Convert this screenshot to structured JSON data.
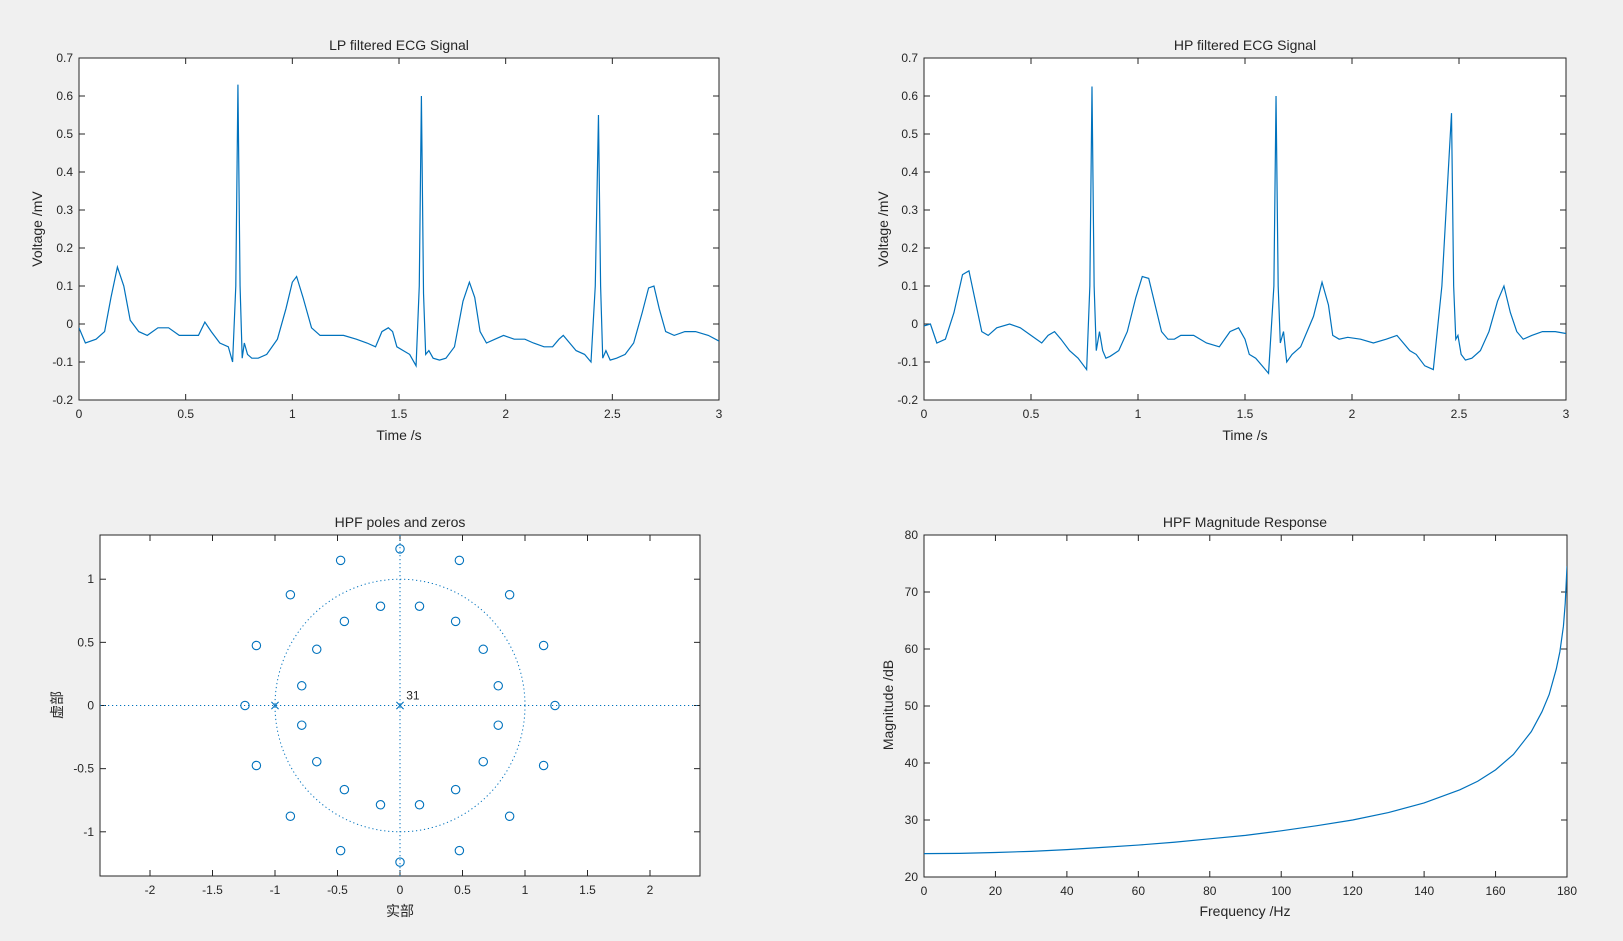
{
  "colors": {
    "series": "#0072bd",
    "axes": "#262626",
    "figure_bg": "#f0f0f0",
    "axes_bg": "#ffffff"
  },
  "chart_data": [
    {
      "id": "lp",
      "type": "line",
      "title": "LP filtered ECG Signal",
      "xlabel": "Time /s",
      "ylabel": "Voltage /mV",
      "xlim": [
        0,
        3
      ],
      "ylim": [
        -0.2,
        0.7
      ],
      "xticks": [
        0,
        0.5,
        1,
        1.5,
        2,
        2.5,
        3
      ],
      "xtick_labels": [
        "0",
        "0.5",
        "1",
        "1.5",
        "2",
        "2.5",
        "3"
      ],
      "yticks": [
        -0.2,
        -0.1,
        0,
        0.1,
        0.2,
        0.3,
        0.4,
        0.5,
        0.6,
        0.7
      ],
      "ytick_labels": [
        "-0.2",
        "-0.1",
        "0",
        "0.1",
        "0.2",
        "0.3",
        "0.4",
        "0.5",
        "0.6",
        "0.7"
      ],
      "grid": false,
      "series": [
        {
          "x": [
            0,
            0.03,
            0.08,
            0.12,
            0.15,
            0.18,
            0.21,
            0.24,
            0.28,
            0.32,
            0.37,
            0.42,
            0.47,
            0.5,
            0.53,
            0.56,
            0.59,
            0.62,
            0.66,
            0.7,
            0.72,
            0.735,
            0.745,
            0.755,
            0.765,
            0.775,
            0.79,
            0.81,
            0.84,
            0.88,
            0.93,
            0.97,
            1.0,
            1.02,
            1.05,
            1.09,
            1.13,
            1.18,
            1.24,
            1.3,
            1.35,
            1.39,
            1.42,
            1.45,
            1.47,
            1.49,
            1.52,
            1.55,
            1.58,
            1.595,
            1.605,
            1.615,
            1.625,
            1.64,
            1.66,
            1.69,
            1.72,
            1.76,
            1.8,
            1.83,
            1.855,
            1.88,
            1.91,
            1.95,
            1.99,
            2.04,
            2.09,
            2.13,
            2.18,
            2.22,
            2.25,
            2.27,
            2.3,
            2.33,
            2.37,
            2.4,
            2.42,
            2.435,
            2.445,
            2.455,
            2.47,
            2.49,
            2.52,
            2.56,
            2.6,
            2.64,
            2.67,
            2.695,
            2.72,
            2.75,
            2.79,
            2.84,
            2.89,
            2.95,
            3.0
          ],
          "y": [
            -0.01,
            -0.05,
            -0.04,
            -0.02,
            0.07,
            0.15,
            0.1,
            0.01,
            -0.02,
            -0.03,
            -0.01,
            -0.01,
            -0.03,
            -0.03,
            -0.03,
            -0.03,
            0.005,
            -0.02,
            -0.05,
            -0.06,
            -0.1,
            0.1,
            0.63,
            0.1,
            -0.09,
            -0.05,
            -0.08,
            -0.09,
            -0.09,
            -0.08,
            -0.04,
            0.04,
            0.11,
            0.125,
            0.07,
            -0.01,
            -0.03,
            -0.03,
            -0.03,
            -0.04,
            -0.05,
            -0.06,
            -0.02,
            -0.01,
            -0.02,
            -0.06,
            -0.07,
            -0.08,
            -0.11,
            0.1,
            0.6,
            0.08,
            -0.08,
            -0.07,
            -0.09,
            -0.095,
            -0.09,
            -0.06,
            0.06,
            0.11,
            0.07,
            -0.02,
            -0.05,
            -0.04,
            -0.03,
            -0.04,
            -0.04,
            -0.05,
            -0.06,
            -0.06,
            -0.04,
            -0.03,
            -0.05,
            -0.07,
            -0.08,
            -0.1,
            0.1,
            0.55,
            0.1,
            -0.09,
            -0.07,
            -0.095,
            -0.09,
            -0.08,
            -0.05,
            0.03,
            0.095,
            0.1,
            0.04,
            -0.02,
            -0.03,
            -0.02,
            -0.02,
            -0.03,
            -0.045
          ]
        }
      ]
    },
    {
      "id": "hp",
      "type": "line",
      "title": "HP filtered ECG Signal",
      "xlabel": "Time /s",
      "ylabel": "Voltage /mV",
      "xlim": [
        0,
        3
      ],
      "ylim": [
        -0.2,
        0.7
      ],
      "xticks": [
        0,
        0.5,
        1,
        1.5,
        2,
        2.5,
        3
      ],
      "xtick_labels": [
        "0",
        "0.5",
        "1",
        "1.5",
        "2",
        "2.5",
        "3"
      ],
      "yticks": [
        -0.2,
        -0.1,
        0,
        0.1,
        0.2,
        0.3,
        0.4,
        0.5,
        0.6,
        0.7
      ],
      "ytick_labels": [
        "-0.2",
        "-0.1",
        "0",
        "0.1",
        "0.2",
        "0.3",
        "0.4",
        "0.5",
        "0.6",
        "0.7"
      ],
      "grid": false,
      "series": [
        {
          "x": [
            0,
            0.03,
            0.06,
            0.1,
            0.14,
            0.18,
            0.21,
            0.24,
            0.27,
            0.3,
            0.34,
            0.4,
            0.45,
            0.5,
            0.55,
            0.58,
            0.61,
            0.64,
            0.68,
            0.72,
            0.76,
            0.775,
            0.785,
            0.795,
            0.805,
            0.82,
            0.835,
            0.85,
            0.87,
            0.91,
            0.95,
            0.99,
            1.02,
            1.05,
            1.08,
            1.11,
            1.14,
            1.17,
            1.2,
            1.26,
            1.32,
            1.38,
            1.43,
            1.47,
            1.5,
            1.52,
            1.55,
            1.58,
            1.61,
            1.635,
            1.645,
            1.655,
            1.665,
            1.68,
            1.695,
            1.72,
            1.76,
            1.82,
            1.86,
            1.89,
            1.91,
            1.94,
            1.98,
            2.04,
            2.1,
            2.16,
            2.21,
            2.24,
            2.27,
            2.3,
            2.34,
            2.38,
            2.42,
            2.465,
            2.475,
            2.485,
            2.495,
            2.51,
            2.53,
            2.56,
            2.6,
            2.64,
            2.68,
            2.71,
            2.74,
            2.77,
            2.8,
            2.84,
            2.89,
            2.95,
            3.0
          ],
          "y": [
            -0.005,
            0,
            -0.05,
            -0.04,
            0.03,
            0.13,
            0.14,
            0.06,
            -0.02,
            -0.03,
            -0.01,
            0,
            -0.01,
            -0.03,
            -0.05,
            -0.03,
            -0.02,
            -0.04,
            -0.07,
            -0.09,
            -0.12,
            0.1,
            0.625,
            0.1,
            -0.07,
            -0.02,
            -0.07,
            -0.09,
            -0.085,
            -0.07,
            -0.02,
            0.07,
            0.125,
            0.12,
            0.05,
            -0.02,
            -0.04,
            -0.04,
            -0.03,
            -0.03,
            -0.05,
            -0.06,
            -0.02,
            -0.01,
            -0.04,
            -0.08,
            -0.09,
            -0.11,
            -0.13,
            0.1,
            0.6,
            0.1,
            -0.05,
            -0.02,
            -0.1,
            -0.08,
            -0.06,
            0.02,
            0.11,
            0.05,
            -0.03,
            -0.04,
            -0.035,
            -0.04,
            -0.05,
            -0.04,
            -0.03,
            -0.05,
            -0.07,
            -0.08,
            -0.11,
            -0.12,
            0.1,
            0.555,
            0.1,
            -0.04,
            -0.03,
            -0.08,
            -0.095,
            -0.09,
            -0.07,
            -0.02,
            0.06,
            0.1,
            0.03,
            -0.02,
            -0.04,
            -0.03,
            -0.02,
            -0.02,
            -0.025
          ]
        }
      ]
    },
    {
      "id": "pz",
      "type": "scatter",
      "title": "HPF poles and zeros",
      "xlabel": "实部",
      "ylabel": "虚部",
      "xlim": [
        -2.4,
        2.4
      ],
      "ylim": [
        -1.35,
        1.35
      ],
      "xticks": [
        -2,
        -1.5,
        -1,
        -0.5,
        0,
        0.5,
        1,
        1.5,
        2
      ],
      "xtick_labels": [
        "-2",
        "-1.5",
        "-1",
        "-0.5",
        "0",
        "0.5",
        "1",
        "1.5",
        "2"
      ],
      "yticks": [
        -1,
        -0.5,
        0,
        0.5,
        1
      ],
      "ytick_labels": [
        "-1",
        "-0.5",
        "0",
        "0.5",
        "1"
      ],
      "grid": false,
      "unit_circle": true,
      "zeros": {
        "x": [
          1.24,
          1.149,
          0.877,
          0.475,
          0,
          -0.475,
          -0.877,
          -1.149,
          -1.24,
          -1.149,
          -0.877,
          -0.475,
          0,
          0.475,
          0.877,
          1.149,
          0.786,
          0.666,
          0.445,
          0.156,
          -0.156,
          -0.445,
          -0.666,
          -0.786,
          -0.786,
          -0.666,
          -0.445,
          -0.156,
          0.156,
          0.445,
          0.666,
          0.786
        ],
        "y": [
          0,
          0.475,
          0.877,
          1.149,
          1.24,
          1.149,
          0.877,
          0.475,
          0,
          -0.475,
          -0.877,
          -1.149,
          -1.24,
          -1.149,
          -0.877,
          -0.475,
          0.156,
          0.445,
          0.666,
          0.786,
          0.786,
          0.666,
          0.445,
          0.156,
          -0.156,
          -0.445,
          -0.666,
          -0.786,
          -0.786,
          -0.666,
          -0.445,
          -0.156
        ]
      },
      "poles": {
        "x": [
          -1,
          0
        ],
        "y": [
          0,
          0
        ]
      },
      "annotations": [
        {
          "text": "31",
          "x": 0.05,
          "y": 0.03
        }
      ]
    },
    {
      "id": "mag",
      "type": "line",
      "title": "HPF Magnitude Response",
      "xlabel": "Frequency /Hz",
      "ylabel": "Magnitude /dB",
      "xlim": [
        0,
        180
      ],
      "ylim": [
        20,
        80
      ],
      "xticks": [
        0,
        20,
        40,
        60,
        80,
        100,
        120,
        140,
        160,
        180
      ],
      "xtick_labels": [
        "0",
        "20",
        "40",
        "60",
        "80",
        "100",
        "120",
        "140",
        "160",
        "180"
      ],
      "yticks": [
        20,
        30,
        40,
        50,
        60,
        70,
        80
      ],
      "ytick_labels": [
        "20",
        "30",
        "40",
        "50",
        "60",
        "70",
        "80"
      ],
      "grid": false,
      "series": [
        {
          "x": [
            0,
            10,
            20,
            30,
            40,
            50,
            60,
            70,
            80,
            90,
            100,
            110,
            120,
            130,
            140,
            150,
            155,
            160,
            165,
            170,
            173,
            175,
            177,
            178,
            179,
            179.5,
            180
          ],
          "y": [
            24.1,
            24.15,
            24.3,
            24.5,
            24.8,
            25.2,
            25.6,
            26.1,
            26.7,
            27.3,
            28.1,
            29.0,
            30.0,
            31.3,
            33.0,
            35.3,
            36.8,
            38.8,
            41.5,
            45.5,
            49.0,
            52.0,
            56.5,
            59.5,
            64.0,
            68.0,
            74.5
          ]
        }
      ]
    }
  ]
}
